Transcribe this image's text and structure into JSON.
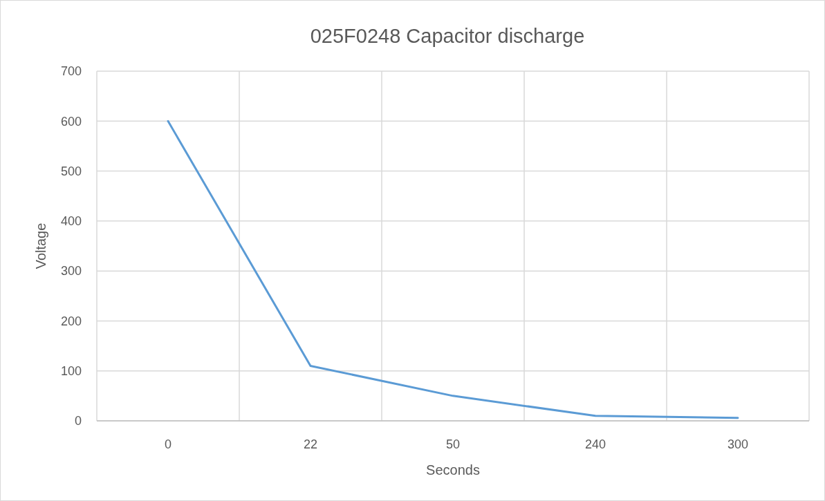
{
  "chart_data": {
    "type": "line",
    "title": "025F0248 Capacitor discharge",
    "xlabel": "Seconds",
    "ylabel": "Voltage",
    "categories": [
      "0",
      "22",
      "50",
      "240",
      "300"
    ],
    "series": [
      {
        "color": "#5b9bd5",
        "values": [
          600,
          110,
          50,
          10,
          6
        ]
      }
    ],
    "ylim": [
      0,
      700
    ],
    "yticks": [
      0,
      100,
      200,
      300,
      400,
      500,
      600,
      700
    ],
    "grid": true,
    "marker": "none",
    "line_style": "solid"
  }
}
